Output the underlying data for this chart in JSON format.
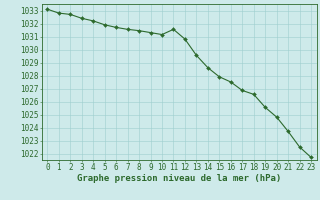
{
  "x": [
    0,
    1,
    2,
    3,
    4,
    5,
    6,
    7,
    8,
    9,
    10,
    11,
    12,
    13,
    14,
    15,
    16,
    17,
    18,
    19,
    20,
    21,
    22,
    23
  ],
  "y": [
    1033.1,
    1032.8,
    1032.7,
    1032.4,
    1032.2,
    1031.9,
    1031.7,
    1031.55,
    1031.45,
    1031.3,
    1031.15,
    1031.55,
    1030.8,
    1029.55,
    1028.6,
    1027.9,
    1027.5,
    1026.85,
    1026.55,
    1025.55,
    1024.8,
    1023.7,
    1022.5,
    1021.7
  ],
  "line_color": "#2d6a2d",
  "marker": "D",
  "marker_size": 2.0,
  "bg_color": "#ceeaea",
  "grid_color": "#9ecece",
  "axis_color": "#2d6a2d",
  "xlabel": "Graphe pression niveau de la mer (hPa)",
  "ylim_min": 1021.5,
  "ylim_max": 1033.5,
  "xlim_min": -0.5,
  "xlim_max": 23.5,
  "xticks": [
    0,
    1,
    2,
    3,
    4,
    5,
    6,
    7,
    8,
    9,
    10,
    11,
    12,
    13,
    14,
    15,
    16,
    17,
    18,
    19,
    20,
    21,
    22,
    23
  ],
  "yticks": [
    1022,
    1023,
    1024,
    1025,
    1026,
    1027,
    1028,
    1029,
    1030,
    1031,
    1032,
    1033
  ],
  "tick_fontsize": 5.5,
  "xlabel_fontsize": 6.5,
  "xlabel_fontweight": "bold"
}
